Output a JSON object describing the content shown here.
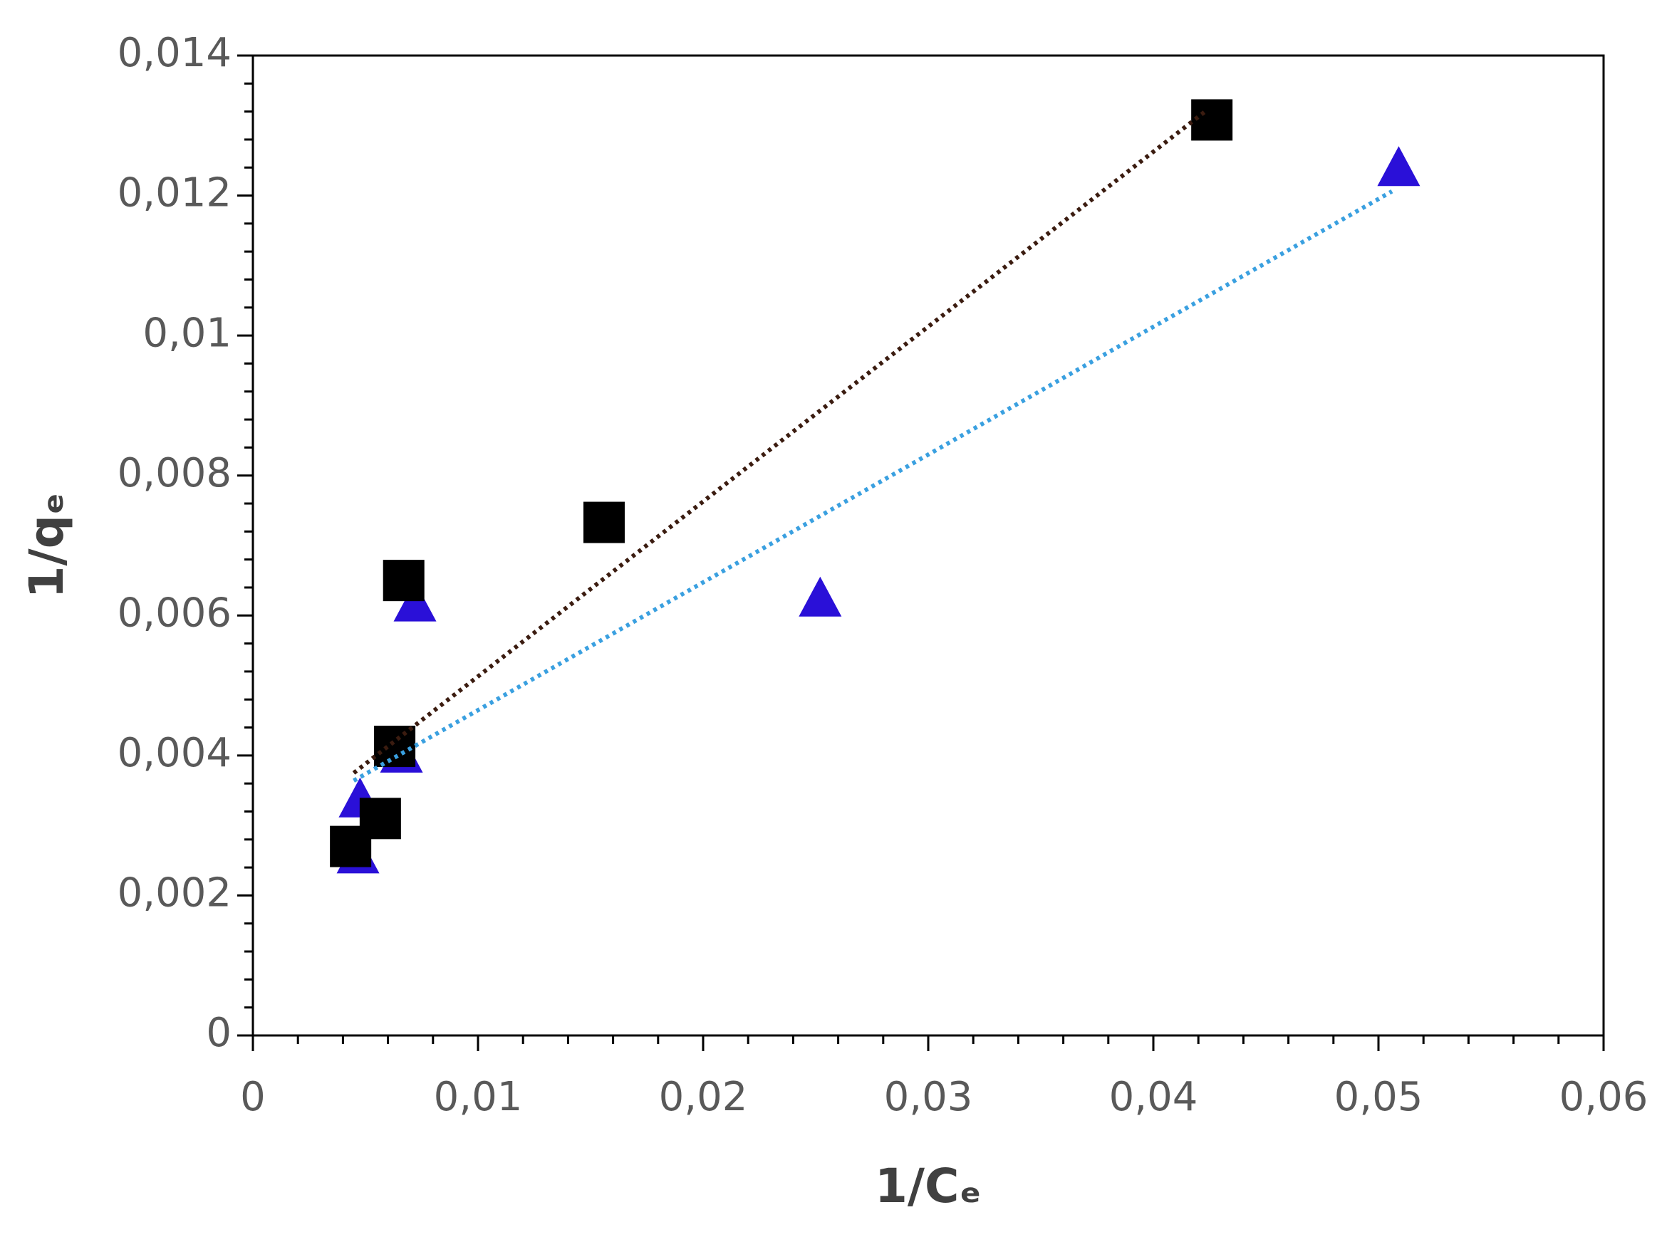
{
  "chart_data": {
    "type": "scatter",
    "x_label": "1/Cₑ",
    "y_label": "1/qₑ",
    "xlim": [
      0,
      0.06
    ],
    "ylim": [
      0,
      0.014
    ],
    "xticks": [
      0,
      {
        "value": 0.01,
        "label": "0,01"
      },
      {
        "value": 0.02,
        "label": "0,02"
      },
      {
        "value": 0.03,
        "label": "0,03"
      },
      {
        "value": 0.04,
        "label": "0,04"
      },
      {
        "value": 0.05,
        "label": "0,05"
      },
      {
        "value": 0.06,
        "label": "0,06"
      }
    ],
    "yticks": [
      0,
      {
        "value": 0.002,
        "label": "0,002"
      },
      {
        "value": 0.004,
        "label": "0,004"
      },
      {
        "value": 0.006,
        "label": "0,006"
      },
      {
        "value": 0.008,
        "label": "0,008"
      },
      {
        "value": 0.01,
        "label": "0,01"
      },
      {
        "value": 0.012,
        "label": "0,012"
      },
      {
        "value": 0.014,
        "label": "0,014"
      }
    ],
    "xminorticks": [
      0.002,
      0.004,
      0.006,
      0.008,
      0.012,
      0.014,
      0.016,
      0.018,
      0.022,
      0.024,
      0.026,
      0.028,
      0.032,
      0.034,
      0.036,
      0.038,
      0.042,
      0.044,
      0.046,
      0.048,
      0.052,
      0.054,
      0.056,
      0.058
    ],
    "yminorticks": [
      0.0004,
      0.0008,
      0.0012,
      0.0016,
      0.0024,
      0.0028,
      0.0032,
      0.0036,
      0.0044,
      0.0048,
      0.0052,
      0.0056,
      0.0064,
      0.0068,
      0.0072,
      0.0076,
      0.0084,
      0.0088,
      0.0092,
      0.0096,
      0.0104,
      0.0108,
      0.0112,
      0.0116,
      0.0124,
      0.0128,
      0.0132,
      0.0136
    ],
    "series": [
      {
        "marker": "triangle",
        "color": "#2a10d8",
        "x": [
          0.00467,
          0.00476,
          0.0066,
          0.0072,
          0.0252,
          0.0509
        ],
        "values": [
          0.00258,
          0.00338,
          0.00402,
          0.00618,
          0.00625,
          0.0124
        ]
      },
      {
        "marker": "square",
        "color": "#000000",
        "x": [
          0.00434,
          0.00566,
          0.0063,
          0.0067,
          0.0156,
          0.0426
        ],
        "values": [
          0.0027,
          0.0031,
          0.00413,
          0.0065,
          0.00733,
          0.01308
        ]
      },
      {
        "line": "dotted",
        "color": "#3b1c10",
        "x": [
          0.00448,
          0.0423
        ],
        "values": [
          0.00375,
          0.0132
        ]
      },
      {
        "line": "dotted",
        "color": "#3aa0e0",
        "x": [
          0.00448,
          0.0506
        ],
        "values": [
          0.00364,
          0.01206
        ]
      }
    ]
  }
}
